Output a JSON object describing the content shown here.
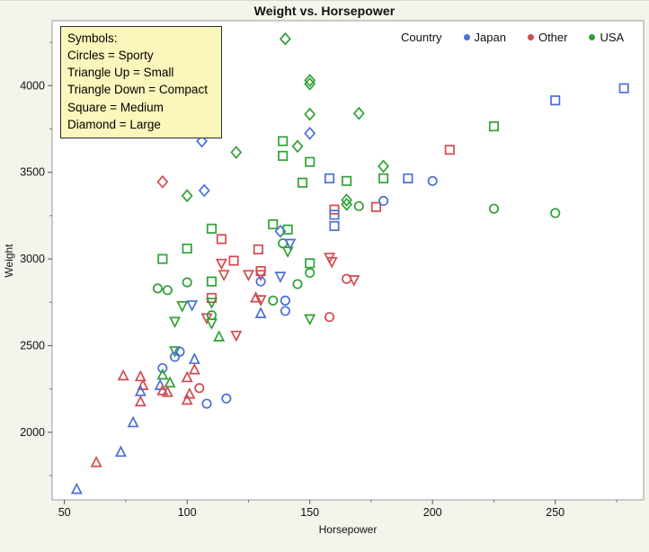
{
  "header": {
    "title": "Weight vs. Horsepower"
  },
  "symbols_note": {
    "heading": "Symbols:",
    "lines": [
      "Circles = Sporty",
      "Triangle Up = Small",
      "Triangle Down = Compact",
      "Square = Medium",
      "Diamond = Large"
    ]
  },
  "legend": {
    "label": "Country",
    "entries": [
      {
        "label": "Japan",
        "color": "#4a6fd6"
      },
      {
        "label": "Other",
        "color": "#d4494f"
      },
      {
        "label": "USA",
        "color": "#2fa134"
      }
    ]
  },
  "chart_data": {
    "type": "scatter",
    "title": "Weight vs. Horsepower",
    "xlabel": "Horsepower",
    "ylabel": "Weight",
    "xlim": [
      45,
      286
    ],
    "ylim": [
      1610,
      4375
    ],
    "xticks": [
      50,
      100,
      150,
      200,
      250
    ],
    "xminor": [
      75,
      125,
      175,
      225,
      275
    ],
    "yticks": [
      2000,
      2500,
      3000,
      3500,
      4000
    ],
    "yminor": [
      1750,
      2250,
      2750,
      3250,
      3750,
      4250
    ],
    "grid": false,
    "legend_position": "top-right-inside",
    "color_map": {
      "Japan": "#4a6fd6",
      "Other": "#d4494f",
      "USA": "#2fa134"
    },
    "shape_map": {
      "Sporty": "circle",
      "Small": "triangle-up",
      "Compact": "triangle-down",
      "Medium": "square",
      "Large": "diamond"
    },
    "points_format": [
      "horsepower",
      "weight",
      "country",
      "type"
    ],
    "points": [
      [
        106,
        3680,
        "Japan",
        "Large"
      ],
      [
        120,
        3615,
        "USA",
        "Large"
      ],
      [
        90,
        3445,
        "Other",
        "Large"
      ],
      [
        100,
        3365,
        "USA",
        "Large"
      ],
      [
        107,
        3395,
        "Japan",
        "Large"
      ],
      [
        110,
        3175,
        "USA",
        "Medium"
      ],
      [
        114,
        3115,
        "Other",
        "Medium"
      ],
      [
        100,
        3060,
        "USA",
        "Medium"
      ],
      [
        90,
        3000,
        "USA",
        "Medium"
      ],
      [
        114,
        2975,
        "Other",
        "Compact"
      ],
      [
        119,
        2990,
        "Other",
        "Medium"
      ],
      [
        140,
        4270,
        "USA",
        "Large"
      ],
      [
        150,
        4030,
        "USA",
        "Large"
      ],
      [
        150,
        4010,
        "USA",
        "Large"
      ],
      [
        150,
        3835,
        "USA",
        "Large"
      ],
      [
        170,
        3840,
        "USA",
        "Large"
      ],
      [
        150,
        3725,
        "Japan",
        "Large"
      ],
      [
        139,
        3680,
        "USA",
        "Medium"
      ],
      [
        145,
        3650,
        "USA",
        "Large"
      ],
      [
        139,
        3595,
        "USA",
        "Medium"
      ],
      [
        150,
        3560,
        "USA",
        "Medium"
      ],
      [
        207,
        3630,
        "Other",
        "Medium"
      ],
      [
        180,
        3535,
        "USA",
        "Large"
      ],
      [
        180,
        3465,
        "USA",
        "Medium"
      ],
      [
        158,
        3465,
        "Japan",
        "Medium"
      ],
      [
        165,
        3450,
        "USA",
        "Medium"
      ],
      [
        190,
        3465,
        "Japan",
        "Medium"
      ],
      [
        200,
        3450,
        "Japan",
        "Sporty"
      ],
      [
        147,
        3440,
        "USA",
        "Medium"
      ],
      [
        165,
        3340,
        "USA",
        "Large"
      ],
      [
        165,
        3315,
        "USA",
        "Large"
      ],
      [
        170,
        3305,
        "USA",
        "Sporty"
      ],
      [
        177,
        3300,
        "Other",
        "Medium"
      ],
      [
        180,
        3335,
        "Japan",
        "Sporty"
      ],
      [
        160,
        3285,
        "Other",
        "Medium"
      ],
      [
        160,
        3255,
        "Japan",
        "Medium"
      ],
      [
        160,
        3190,
        "Japan",
        "Medium"
      ],
      [
        135,
        3200,
        "USA",
        "Medium"
      ],
      [
        138,
        3160,
        "Japan",
        "Large"
      ],
      [
        141,
        3170,
        "USA",
        "Medium"
      ],
      [
        129,
        3055,
        "Other",
        "Medium"
      ],
      [
        139,
        3090,
        "USA",
        "Sporty"
      ],
      [
        142,
        3090,
        "Japan",
        "Compact"
      ],
      [
        141,
        3045,
        "USA",
        "Compact"
      ],
      [
        158,
        3010,
        "Other",
        "Compact"
      ],
      [
        159,
        2985,
        "Other",
        "Compact"
      ],
      [
        150,
        2975,
        "USA",
        "Medium"
      ],
      [
        278,
        3985,
        "Japan",
        "Medium"
      ],
      [
        250,
        3915,
        "Japan",
        "Medium"
      ],
      [
        225,
        3765,
        "USA",
        "Medium"
      ],
      [
        225,
        3290,
        "USA",
        "Sporty"
      ],
      [
        250,
        3265,
        "USA",
        "Sporty"
      ],
      [
        115,
        2910,
        "Other",
        "Compact"
      ],
      [
        125,
        2910,
        "Other",
        "Compact"
      ],
      [
        88,
        2830,
        "USA",
        "Sporty"
      ],
      [
        92,
        2820,
        "USA",
        "Sporty"
      ],
      [
        100,
        2865,
        "USA",
        "Sporty"
      ],
      [
        110,
        2870,
        "USA",
        "Medium"
      ],
      [
        98,
        2730,
        "USA",
        "Compact"
      ],
      [
        102,
        2735,
        "Japan",
        "Compact"
      ],
      [
        110,
        2775,
        "Other",
        "Medium"
      ],
      [
        110,
        2750,
        "USA",
        "Compact"
      ],
      [
        95,
        2640,
        "USA",
        "Compact"
      ],
      [
        108,
        2660,
        "Other",
        "Compact"
      ],
      [
        110,
        2675,
        "USA",
        "Sporty"
      ],
      [
        110,
        2630,
        "USA",
        "Compact"
      ],
      [
        113,
        2550,
        "USA",
        "Small"
      ],
      [
        120,
        2560,
        "Other",
        "Compact"
      ],
      [
        95,
        2470,
        "USA",
        "Compact"
      ],
      [
        97,
        2465,
        "Japan",
        "Sporty"
      ],
      [
        95,
        2435,
        "Japan",
        "Sporty"
      ],
      [
        103,
        2420,
        "Japan",
        "Small"
      ],
      [
        90,
        2370,
        "Japan",
        "Sporty"
      ],
      [
        103,
        2360,
        "Other",
        "Small"
      ],
      [
        74,
        2325,
        "Other",
        "Small"
      ],
      [
        81,
        2320,
        "Other",
        "Small"
      ],
      [
        90,
        2330,
        "USA",
        "Small"
      ],
      [
        100,
        2315,
        "Other",
        "Small"
      ],
      [
        93,
        2285,
        "USA",
        "Small"
      ],
      [
        82,
        2270,
        "Other",
        "Small"
      ],
      [
        81,
        2235,
        "Japan",
        "Small"
      ],
      [
        89,
        2270,
        "Japan",
        "Small"
      ],
      [
        90,
        2240,
        "Other",
        "Small"
      ],
      [
        92,
        2230,
        "Other",
        "Small"
      ],
      [
        101,
        2220,
        "Other",
        "Small"
      ],
      [
        105,
        2255,
        "Other",
        "Sporty"
      ],
      [
        100,
        2185,
        "Other",
        "Small"
      ],
      [
        108,
        2165,
        "Japan",
        "Sporty"
      ],
      [
        116,
        2195,
        "Japan",
        "Sporty"
      ],
      [
        81,
        2175,
        "Other",
        "Small"
      ],
      [
        78,
        2055,
        "Japan",
        "Small"
      ],
      [
        73,
        1885,
        "Japan",
        "Small"
      ],
      [
        63,
        1825,
        "Other",
        "Small"
      ],
      [
        55,
        1670,
        "Japan",
        "Small"
      ],
      [
        130,
        2930,
        "Other",
        "Medium"
      ],
      [
        130,
        2910,
        "Other",
        "Compact"
      ],
      [
        130,
        2870,
        "Japan",
        "Sporty"
      ],
      [
        138,
        2900,
        "Japan",
        "Compact"
      ],
      [
        150,
        2920,
        "USA",
        "Sporty"
      ],
      [
        145,
        2855,
        "USA",
        "Sporty"
      ],
      [
        165,
        2885,
        "Other",
        "Sporty"
      ],
      [
        168,
        2880,
        "Other",
        "Compact"
      ],
      [
        128,
        2775,
        "Other",
        "Small"
      ],
      [
        130,
        2765,
        "Other",
        "Compact"
      ],
      [
        135,
        2760,
        "USA",
        "Sporty"
      ],
      [
        140,
        2760,
        "Japan",
        "Sporty"
      ],
      [
        130,
        2685,
        "Japan",
        "Small"
      ],
      [
        140,
        2700,
        "Japan",
        "Sporty"
      ],
      [
        150,
        2655,
        "USA",
        "Compact"
      ],
      [
        158,
        2665,
        "Other",
        "Sporty"
      ]
    ]
  }
}
